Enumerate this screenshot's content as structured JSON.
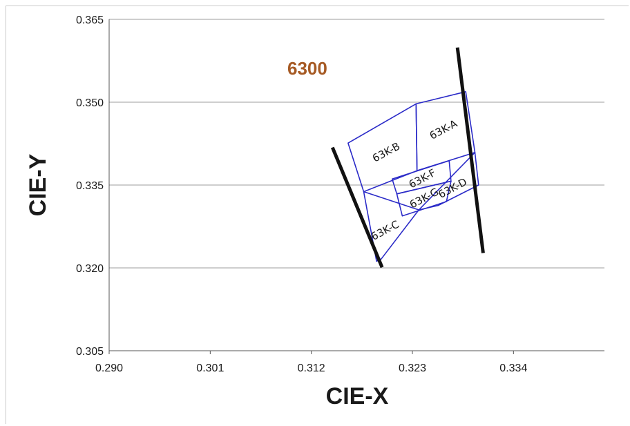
{
  "chart_data": {
    "type": "scatter",
    "title": "",
    "xlabel": "CIE-X",
    "ylabel": "CIE-Y",
    "xlim": [
      0.29,
      0.345
    ],
    "ylim": [
      0.305,
      0.365
    ],
    "x_ticks": [
      "0.290",
      "0.301",
      "0.312",
      "0.323",
      "0.334"
    ],
    "y_ticks": [
      "0.365",
      "0.350",
      "0.335",
      "0.320",
      "0.305"
    ],
    "grid": "horizontal",
    "cct_label": "6300",
    "cct_label_color": "#A65A24",
    "bin_color": "#2B2BC8",
    "boundary_color": "#111111",
    "boundaries": [
      {
        "name": "left",
        "points": [
          [
            0.3143,
            0.3418
          ],
          [
            0.3197,
            0.3201
          ]
        ]
      },
      {
        "name": "right",
        "points": [
          [
            0.3279,
            0.3599
          ],
          [
            0.3307,
            0.3227
          ]
        ]
      }
    ],
    "bins": [
      {
        "label": "63K-A",
        "polygon": [
          [
            0.3234,
            0.3497
          ],
          [
            0.3288,
            0.3519
          ],
          [
            0.3298,
            0.3409
          ],
          [
            0.3235,
            0.3376
          ]
        ]
      },
      {
        "label": "63K-B",
        "polygon": [
          [
            0.316,
            0.3426
          ],
          [
            0.3234,
            0.3497
          ],
          [
            0.3235,
            0.3376
          ],
          [
            0.3177,
            0.3338
          ]
        ]
      },
      {
        "label": "63K-C",
        "polygon": [
          [
            0.3177,
            0.3338
          ],
          [
            0.3237,
            0.3305
          ],
          [
            0.3196,
            0.3216
          ],
          [
            0.3191,
            0.3212
          ]
        ]
      },
      {
        "label": "63K-D",
        "polygon": [
          [
            0.3237,
            0.3305
          ],
          [
            0.3298,
            0.3409
          ],
          [
            0.3302,
            0.335
          ],
          [
            0.3258,
            0.3313
          ]
        ]
      },
      {
        "label": "63K-F",
        "polygon": [
          [
            0.3208,
            0.3361
          ],
          [
            0.327,
            0.3394
          ],
          [
            0.3272,
            0.3357
          ],
          [
            0.3213,
            0.3334
          ]
        ]
      },
      {
        "label": "63K-G",
        "polygon": [
          [
            0.3213,
            0.3334
          ],
          [
            0.3272,
            0.3357
          ],
          [
            0.3267,
            0.332
          ],
          [
            0.3219,
            0.3294
          ]
        ]
      }
    ]
  }
}
